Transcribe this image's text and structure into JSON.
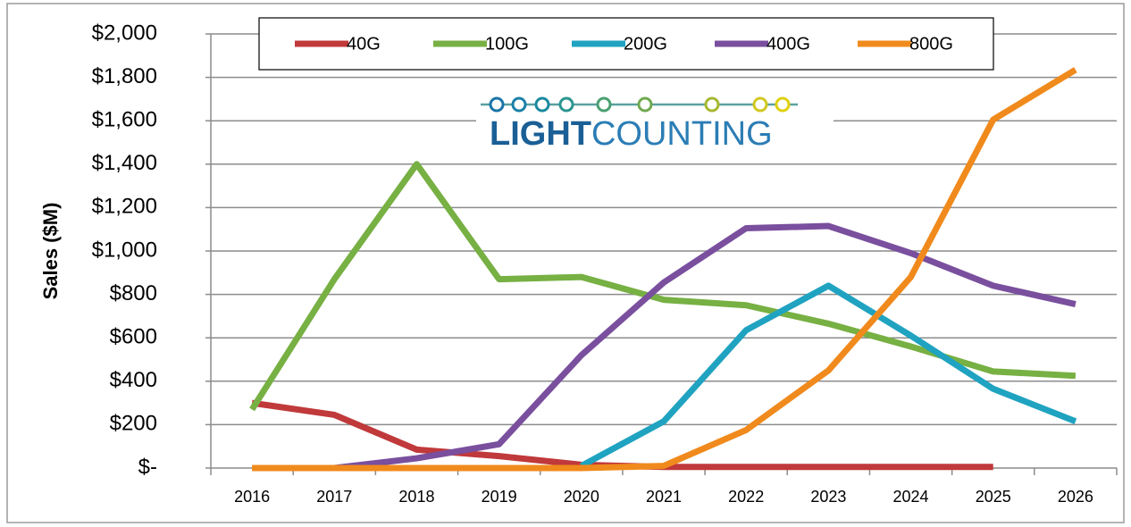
{
  "chart_data": {
    "type": "line",
    "ylabel": "Sales ($M)",
    "logo": [
      "LIGHT",
      "COUNTING"
    ],
    "categories": [
      "2016",
      "2017",
      "2018",
      "2019",
      "2020",
      "2021",
      "2022",
      "2023",
      "2024",
      "2025",
      "2026"
    ],
    "series": [
      {
        "name": "40G",
        "color": "#c0393b",
        "values": [
          300,
          245,
          85,
          55,
          15,
          5,
          5,
          5,
          5,
          5,
          null
        ]
      },
      {
        "name": "100G",
        "color": "#77b043",
        "values": [
          270,
          870,
          1400,
          870,
          880,
          775,
          750,
          665,
          560,
          445,
          425
        ]
      },
      {
        "name": "200G",
        "color": "#1fa3c0",
        "values": [
          null,
          null,
          null,
          null,
          10,
          215,
          635,
          840,
          610,
          365,
          215
        ]
      },
      {
        "name": "400G",
        "color": "#7a4f9e",
        "values": [
          null,
          0,
          45,
          110,
          520,
          855,
          1105,
          1115,
          990,
          840,
          755
        ]
      },
      {
        "name": "800G",
        "color": "#f08a1c",
        "values": [
          0,
          0,
          0,
          0,
          0,
          10,
          175,
          450,
          880,
          1605,
          1835
        ]
      }
    ],
    "ylim": [
      0,
      2000
    ],
    "yticks": [
      {
        "value": 0,
        "label": "$-"
      },
      {
        "value": 200,
        "label": "$200"
      },
      {
        "value": 400,
        "label": "$400"
      },
      {
        "value": 600,
        "label": "$600"
      },
      {
        "value": 800,
        "label": "$800"
      },
      {
        "value": 1000,
        "label": "$1,000"
      },
      {
        "value": 1200,
        "label": "$1,200"
      },
      {
        "value": 1400,
        "label": "$1,400"
      },
      {
        "value": 1600,
        "label": "$1,600"
      },
      {
        "value": 1800,
        "label": "$1,800"
      },
      {
        "value": 2000,
        "label": "$2,000"
      }
    ],
    "grid": true,
    "legend": "top"
  }
}
